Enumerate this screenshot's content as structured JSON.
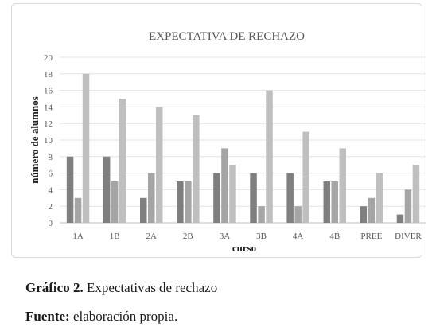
{
  "chart_data": {
    "type": "bar",
    "title": "EXPECTATIVA DE RECHAZO",
    "xlabel": "curso",
    "ylabel": "número de alumnos",
    "categories": [
      "1A",
      "1B",
      "2A",
      "2B",
      "3A",
      "3B",
      "4A",
      "4B",
      "PREE",
      "DIVER"
    ],
    "series": [
      {
        "values": [
          8,
          8,
          3,
          5,
          6,
          6,
          6,
          5,
          2,
          1
        ]
      },
      {
        "values": [
          3,
          5,
          6,
          5,
          9,
          2,
          2,
          5,
          3,
          4
        ]
      },
      {
        "values": [
          18,
          15,
          14,
          13,
          7,
          16,
          11,
          9,
          6,
          7
        ]
      }
    ],
    "ylim": [
      0,
      20
    ],
    "yticks": [
      0,
      2,
      4,
      6,
      8,
      10,
      12,
      14,
      16,
      18,
      20
    ],
    "grid": true,
    "colors": [
      "#7f7f7f",
      "#a5a5a5",
      "#bfbfbf"
    ]
  },
  "caption": {
    "figure_label": "Gráfico 2.",
    "figure_text": " Expectativas de rechazo",
    "source_label": "Fuente:",
    "source_text": " elaboración propia."
  }
}
